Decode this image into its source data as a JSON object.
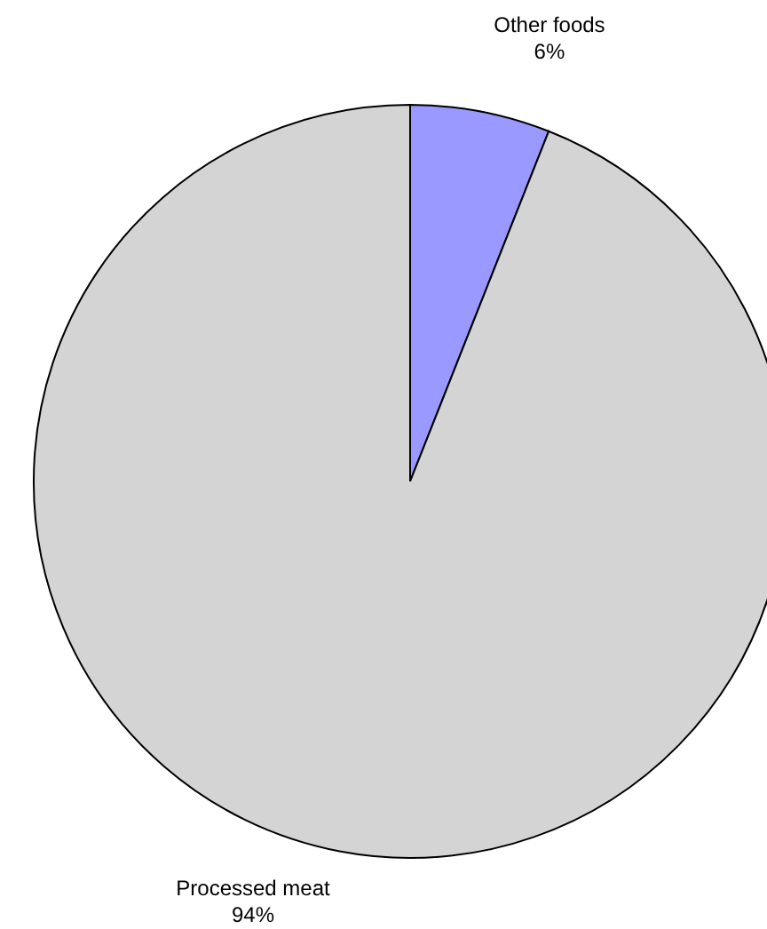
{
  "chart_data": {
    "type": "pie",
    "categories": [
      "Other foods",
      "Processed meat"
    ],
    "values": [
      6,
      94
    ],
    "colors": [
      "#9999ff",
      "#d4d4d4"
    ],
    "value_labels": [
      "6%",
      "94%"
    ]
  }
}
